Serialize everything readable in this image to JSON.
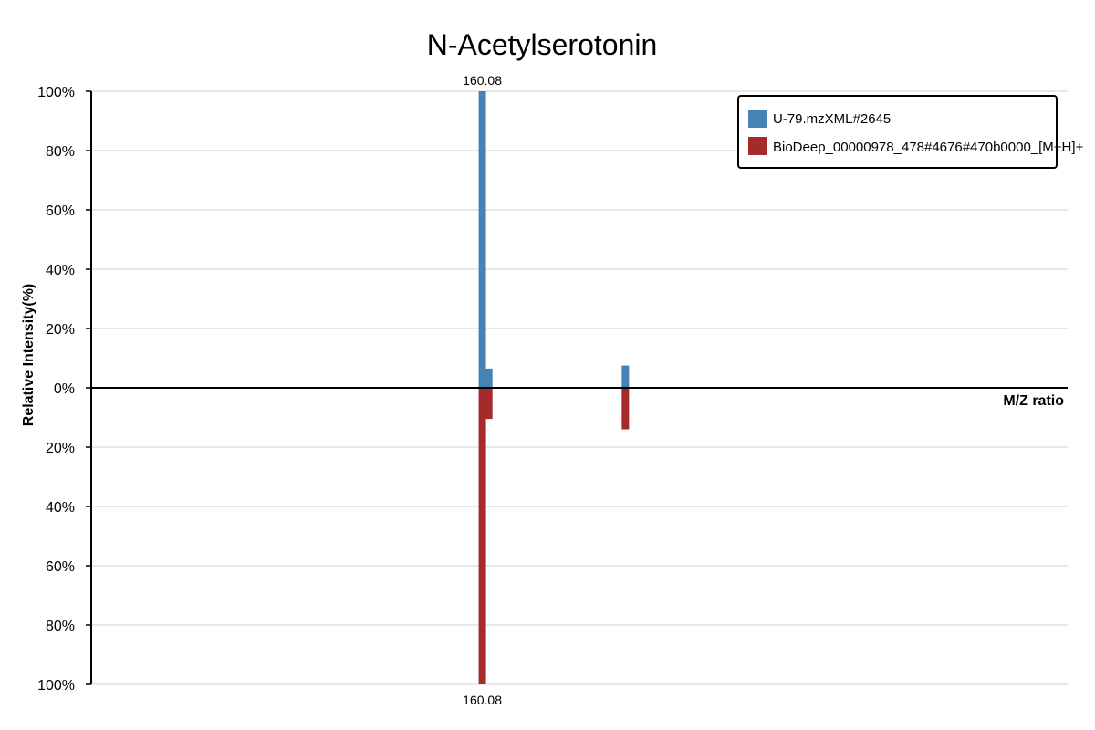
{
  "chart_data": {
    "type": "bar",
    "title": "N-Acetylserotonin",
    "xlabel": "M/Z ratio",
    "ylabel": "Relative Intensity(%)",
    "y_ticks_top": [
      "100%",
      "80%",
      "60%",
      "40%",
      "20%",
      "0%"
    ],
    "y_ticks_bottom": [
      "20%",
      "40%",
      "60%",
      "80%",
      "100%"
    ],
    "xlim": [
      100,
      250
    ],
    "ylim": [
      -100,
      100
    ],
    "grid": true,
    "legend_position": "top-right",
    "series": [
      {
        "name": "U-79.mzXML#2645",
        "color": "#4682B4",
        "direction": "up",
        "peaks": [
          {
            "mz": 160.08,
            "intensity": 100,
            "label": "160.08"
          },
          {
            "mz": 161.08,
            "intensity": 6.5
          },
          {
            "mz": 182.06,
            "intensity": 7.5
          }
        ]
      },
      {
        "name": "BioDeep_00000978_478#4676#470b0000_[M+H]+",
        "color": "#A52A2A",
        "direction": "down",
        "peaks": [
          {
            "mz": 160.08,
            "intensity": 100,
            "label": "160.08"
          },
          {
            "mz": 161.08,
            "intensity": 10.5
          },
          {
            "mz": 182.06,
            "intensity": 14
          }
        ]
      }
    ]
  }
}
